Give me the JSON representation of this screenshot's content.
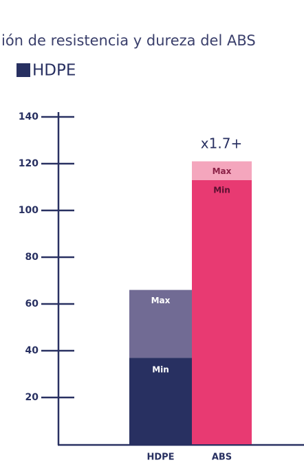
{
  "chart_data": {
    "type": "stacked_bar",
    "title": "ión de resistencia y dureza del ABS",
    "legend": "HDPE",
    "legend_color": "#283061",
    "annotation": "x1.7+",
    "categories": [
      "HDPE",
      "ABS"
    ],
    "series": [
      {
        "name": "Min",
        "colors": [
          "#283061",
          "#e83a72"
        ],
        "values": [
          37,
          113
        ]
      },
      {
        "name": "Max",
        "colors": [
          "#716b94",
          "#f4a6bd"
        ],
        "values": [
          29,
          8
        ]
      }
    ],
    "ylim": [
      0,
      140
    ],
    "yticks": [
      20,
      40,
      60,
      80,
      100,
      120,
      140
    ]
  }
}
